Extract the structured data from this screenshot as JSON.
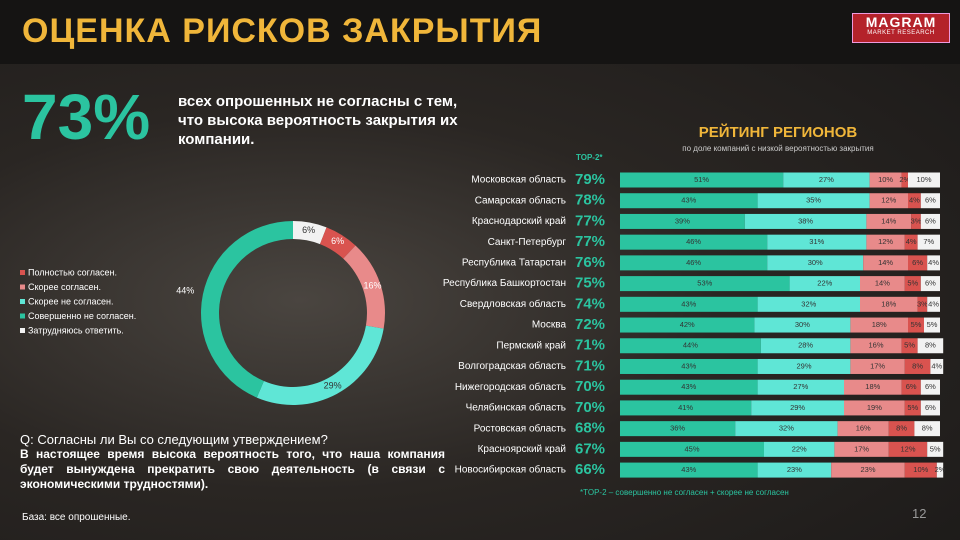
{
  "header": {
    "title": "ОЦЕНКА РИСКОВ ЗАКРЫТИЯ",
    "logo": "MAGRAM",
    "logo_sub": "MARKET RESEARCH"
  },
  "highlight": {
    "value": "73%",
    "text": "всех опрошенных не согласны с тем, что высока вероятность закрытия их компании."
  },
  "question": {
    "label": "Q: Согласны ли Вы со следующим утверждением?",
    "text": "В настоящее время высока вероятность того, что наша компания будет вынуждена прекратить свою деятельность (в связи с экономическими трудностями)."
  },
  "base": "База: все опрошенные.",
  "page_number": "12",
  "chart_data": [
    {
      "type": "donut",
      "categories": [
        "Полностью согласен.",
        "Скорее согласен.",
        "Скорее не согласен.",
        "Совершенно не согласен.",
        "Затрудняюсь ответить."
      ],
      "values": [
        6,
        16,
        29,
        44,
        6
      ],
      "value_labels": [
        "6%",
        "16%",
        "29%",
        "44%",
        "6%"
      ],
      "colors": [
        "#d9534f",
        "#e88a8a",
        "#5fe6d6",
        "#2bc4a0",
        "#f2f2f2"
      ]
    },
    {
      "type": "stacked-bar",
      "title": "РЕЙТИНГ РЕГИОНОВ",
      "subtitle": "по доле компаний с низкой вероятностью закрытия",
      "footnote": "*TOP-2 – совершенно не согласен + скорее не согласен",
      "categories": [
        "Московская область",
        "Самарская область",
        "Краснодарский край",
        "Санкт-Петербург",
        "Республика Татарстан",
        "Республика Башкортостан",
        "Свердловская область",
        "Москва",
        "Пермский край",
        "Волгоградская область",
        "Нижегородская область",
        "Челябинская область",
        "Ростовская область",
        "Красноярский край",
        "Новосибирская область"
      ],
      "top2": {
        "name": "TOP-2*",
        "values": [
          79,
          78,
          77,
          77,
          76,
          75,
          74,
          72,
          71,
          71,
          70,
          70,
          68,
          67,
          66
        ],
        "value_labels": [
          "79%",
          "78%",
          "77%",
          "77%",
          "76%",
          "75%",
          "74%",
          "72%",
          "71%",
          "71%",
          "70%",
          "70%",
          "68%",
          "67%",
          "66%"
        ]
      },
      "xlim": [
        0,
        100
      ],
      "series": [
        {
          "name": "Совершенно не согласен.",
          "color": "#2bc4a0",
          "values": [
            51,
            43,
            39,
            46,
            46,
            53,
            43,
            42,
            44,
            43,
            43,
            41,
            36,
            45,
            43
          ],
          "value_labels": [
            "51%",
            "43%",
            "39%",
            "46%",
            "46%",
            "53%",
            "43%",
            "42%",
            "44%",
            "43%",
            "43%",
            "41%",
            "36%",
            "45%",
            "43%"
          ]
        },
        {
          "name": "Скорее не согласен.",
          "color": "#5fe6d6",
          "values": [
            27,
            35,
            38,
            31,
            30,
            22,
            32,
            30,
            28,
            29,
            27,
            29,
            32,
            22,
            23
          ],
          "value_labels": [
            "27%",
            "35%",
            "38%",
            "31%",
            "30%",
            "22%",
            "32%",
            "30%",
            "28%",
            "29%",
            "27%",
            "29%",
            "32%",
            "22%",
            "23%"
          ]
        },
        {
          "name": "Скорее согласен.",
          "color": "#e88a8a",
          "values": [
            10,
            12,
            14,
            12,
            14,
            14,
            18,
            18,
            16,
            17,
            18,
            19,
            16,
            17,
            23
          ],
          "value_labels": [
            "10%",
            "12%",
            "14%",
            "12%",
            "14%",
            "14%",
            "18%",
            "18%",
            "16%",
            "17%",
            "18%",
            "19%",
            "16%",
            "17%",
            "23%"
          ]
        },
        {
          "name": "Полностью согласен.",
          "color": "#d9534f",
          "values": [
            2,
            4,
            3,
            4,
            6,
            5,
            3,
            5,
            5,
            8,
            6,
            5,
            8,
            12,
            10
          ],
          "value_labels": [
            "2%",
            "4%",
            "3%",
            "4%",
            "6%",
            "5%",
            "3%",
            "5%",
            "5%",
            "8%",
            "6%",
            "5%",
            "8%",
            "12%",
            "10%"
          ]
        },
        {
          "name": "Затрудняюсь ответить.",
          "color": "#f2f2f2",
          "values": [
            10,
            6,
            6,
            7,
            4,
            6,
            4,
            5,
            8,
            4,
            6,
            6,
            8,
            5,
            2
          ],
          "value_labels": [
            "10%",
            "6%",
            "6%",
            "7%",
            "4%",
            "6%",
            "4%",
            "5%",
            "8%",
            "4%",
            "6%",
            "6%",
            "8%",
            "5%",
            "2%"
          ]
        }
      ]
    }
  ]
}
